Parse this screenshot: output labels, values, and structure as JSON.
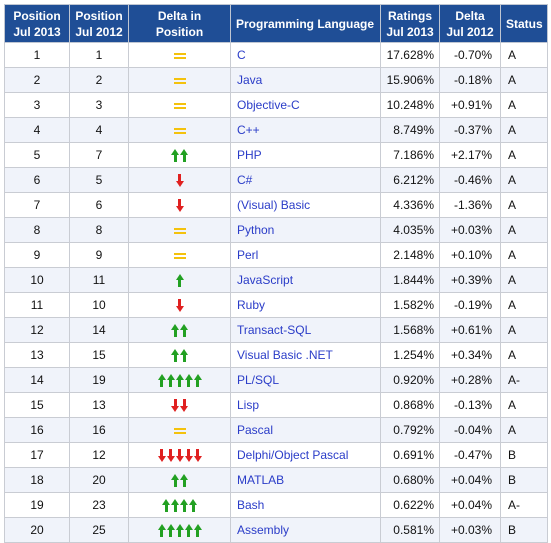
{
  "columns": [
    "Position Jul 2013",
    "Position Jul 2012",
    "Delta in Position",
    "Programming Language",
    "Ratings Jul 2013",
    "Delta Jul 2012",
    "Status"
  ],
  "header": {
    "pos2013": [
      "Position",
      "Jul 2013"
    ],
    "pos2012": [
      "Position",
      "Jul 2012"
    ],
    "delta_pos": "Delta in Position",
    "language": "Programming Language",
    "ratings": [
      "Ratings",
      "Jul 2013"
    ],
    "delta": [
      "Delta",
      "Jul 2012"
    ],
    "status": "Status"
  },
  "colors": {
    "header_bg": "#1f4e96",
    "link": "#2a3cc8",
    "up": "#22a022",
    "down": "#e02020",
    "same": "#f4c20d"
  },
  "rows": [
    {
      "pos2013": "1",
      "pos2012": "1",
      "trend": "same",
      "count": 1,
      "language": "C",
      "rating": "17.628%",
      "delta": "-0.70%",
      "status": "A"
    },
    {
      "pos2013": "2",
      "pos2012": "2",
      "trend": "same",
      "count": 1,
      "language": "Java",
      "rating": "15.906%",
      "delta": "-0.18%",
      "status": "A"
    },
    {
      "pos2013": "3",
      "pos2012": "3",
      "trend": "same",
      "count": 1,
      "language": "Objective-C",
      "rating": "10.248%",
      "delta": "+0.91%",
      "status": "A"
    },
    {
      "pos2013": "4",
      "pos2012": "4",
      "trend": "same",
      "count": 1,
      "language": "C++",
      "rating": "8.749%",
      "delta": "-0.37%",
      "status": "A"
    },
    {
      "pos2013": "5",
      "pos2012": "7",
      "trend": "up",
      "count": 2,
      "language": "PHP",
      "rating": "7.186%",
      "delta": "+2.17%",
      "status": "A"
    },
    {
      "pos2013": "6",
      "pos2012": "5",
      "trend": "down",
      "count": 1,
      "language": "C#",
      "rating": "6.212%",
      "delta": "-0.46%",
      "status": "A"
    },
    {
      "pos2013": "7",
      "pos2012": "6",
      "trend": "down",
      "count": 1,
      "language": "(Visual) Basic",
      "rating": "4.336%",
      "delta": "-1.36%",
      "status": "A"
    },
    {
      "pos2013": "8",
      "pos2012": "8",
      "trend": "same",
      "count": 1,
      "language": "Python",
      "rating": "4.035%",
      "delta": "+0.03%",
      "status": "A"
    },
    {
      "pos2013": "9",
      "pos2012": "9",
      "trend": "same",
      "count": 1,
      "language": "Perl",
      "rating": "2.148%",
      "delta": "+0.10%",
      "status": "A"
    },
    {
      "pos2013": "10",
      "pos2012": "11",
      "trend": "up",
      "count": 1,
      "language": "JavaScript",
      "rating": "1.844%",
      "delta": "+0.39%",
      "status": "A"
    },
    {
      "pos2013": "11",
      "pos2012": "10",
      "trend": "down",
      "count": 1,
      "language": "Ruby",
      "rating": "1.582%",
      "delta": "-0.19%",
      "status": "A"
    },
    {
      "pos2013": "12",
      "pos2012": "14",
      "trend": "up",
      "count": 2,
      "language": "Transact-SQL",
      "rating": "1.568%",
      "delta": "+0.61%",
      "status": "A"
    },
    {
      "pos2013": "13",
      "pos2012": "15",
      "trend": "up",
      "count": 2,
      "language": "Visual Basic .NET",
      "rating": "1.254%",
      "delta": "+0.34%",
      "status": "A"
    },
    {
      "pos2013": "14",
      "pos2012": "19",
      "trend": "up",
      "count": 5,
      "language": "PL/SQL",
      "rating": "0.920%",
      "delta": "+0.28%",
      "status": "A-"
    },
    {
      "pos2013": "15",
      "pos2012": "13",
      "trend": "down",
      "count": 2,
      "language": "Lisp",
      "rating": "0.868%",
      "delta": "-0.13%",
      "status": "A"
    },
    {
      "pos2013": "16",
      "pos2012": "16",
      "trend": "same",
      "count": 1,
      "language": "Pascal",
      "rating": "0.792%",
      "delta": "-0.04%",
      "status": "A"
    },
    {
      "pos2013": "17",
      "pos2012": "12",
      "trend": "down",
      "count": 5,
      "language": "Delphi/Object Pascal",
      "rating": "0.691%",
      "delta": "-0.47%",
      "status": "B"
    },
    {
      "pos2013": "18",
      "pos2012": "20",
      "trend": "up",
      "count": 2,
      "language": "MATLAB",
      "rating": "0.680%",
      "delta": "+0.04%",
      "status": "B"
    },
    {
      "pos2013": "19",
      "pos2012": "23",
      "trend": "up",
      "count": 4,
      "language": "Bash",
      "rating": "0.622%",
      "delta": "+0.04%",
      "status": "A-"
    },
    {
      "pos2013": "20",
      "pos2012": "25",
      "trend": "up",
      "count": 5,
      "language": "Assembly",
      "rating": "0.581%",
      "delta": "+0.03%",
      "status": "B"
    }
  ]
}
